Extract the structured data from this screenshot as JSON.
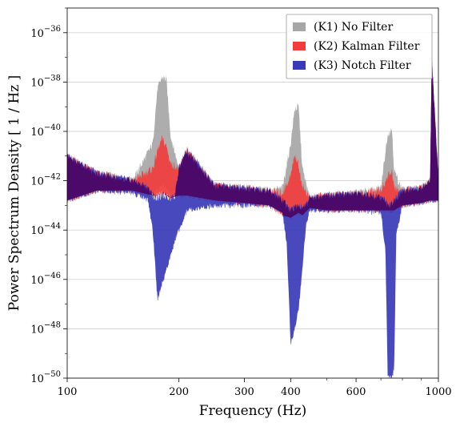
{
  "chart_data": {
    "type": "line",
    "title": "",
    "xlabel": "Frequency (Hz)",
    "ylabel": "Power Spectrum Density [ 1 / Hz ]",
    "xscale": "log",
    "yscale": "log",
    "xlim": [
      100,
      1000
    ],
    "ylim": [
      1e-50,
      1e-35
    ],
    "grid": "horizontal",
    "legend_position": "top-right",
    "x_ticks": [
      {
        "value": 100,
        "label": "100"
      },
      {
        "value": 200,
        "label": "200"
      },
      {
        "value": 300,
        "label": "300"
      },
      {
        "value": 400,
        "label": "400"
      },
      {
        "value": 600,
        "label": "600"
      },
      {
        "value": 1000,
        "label": "1000"
      }
    ],
    "y_ticks": [
      {
        "value": 1e-36,
        "base": "10",
        "exp": "−36"
      },
      {
        "value": 1e-38,
        "base": "10",
        "exp": "−38"
      },
      {
        "value": 1e-40,
        "base": "10",
        "exp": "−40"
      },
      {
        "value": 1e-42,
        "base": "10",
        "exp": "−42"
      },
      {
        "value": 1e-44,
        "base": "10",
        "exp": "−44"
      },
      {
        "value": 1e-46,
        "base": "10",
        "exp": "−46"
      },
      {
        "value": 1e-48,
        "base": "10",
        "exp": "−48"
      },
      {
        "value": 1e-50,
        "base": "10",
        "exp": "−50"
      }
    ],
    "series": [
      {
        "name": "(K1) No Filter",
        "color": "#a6a6a6",
        "x": [
          100,
          120,
          150,
          170,
          175,
          180,
          185,
          190,
          200,
          210,
          250,
          300,
          350,
          380,
          400,
          410,
          420,
          430,
          450,
          500,
          600,
          700,
          730,
          750,
          760,
          800,
          900,
          950,
          960,
          1000
        ],
        "low_exp": [
          -42.8,
          -42.4,
          -42.4,
          -42.5,
          -42.3,
          -42.2,
          -42.3,
          -42.5,
          -42.4,
          -42.6,
          -42.8,
          -42.9,
          -43.0,
          -43.2,
          -43.3,
          -43.2,
          -43.2,
          -43.3,
          -43.1,
          -43.2,
          -43.2,
          -43.1,
          -43.0,
          -43.0,
          -43.1,
          -43.0,
          -42.9,
          -42.8,
          -42.8,
          -42.8
        ],
        "high_exp": [
          -41.0,
          -41.7,
          -42.0,
          -40.5,
          -38.3,
          -37.8,
          -37.9,
          -40.2,
          -41.5,
          -40.7,
          -42.2,
          -42.3,
          -42.4,
          -42.3,
          -40.5,
          -39.1,
          -39.0,
          -41.5,
          -42.7,
          -42.6,
          -42.5,
          -42.3,
          -40.1,
          -39.9,
          -41.6,
          -42.4,
          -42.3,
          -42.0,
          -37.0,
          -42.0
        ]
      },
      {
        "name": "(K2) Kalman Filter",
        "color": "#f03c3c",
        "x": [
          100,
          120,
          150,
          170,
          175,
          180,
          185,
          190,
          200,
          210,
          250,
          300,
          350,
          380,
          400,
          410,
          420,
          430,
          450,
          500,
          600,
          700,
          730,
          750,
          760,
          800,
          900,
          950,
          960,
          1000
        ],
        "low_exp": [
          -42.8,
          -42.4,
          -42.4,
          -42.6,
          -42.6,
          -42.5,
          -42.6,
          -42.7,
          -42.6,
          -42.6,
          -42.8,
          -42.9,
          -43.0,
          -43.4,
          -43.5,
          -43.4,
          -43.3,
          -43.4,
          -43.1,
          -43.2,
          -43.2,
          -43.2,
          -43.2,
          -43.2,
          -43.2,
          -43.0,
          -42.9,
          -42.8,
          -42.8,
          -42.8
        ],
        "high_exp": [
          -41.0,
          -41.7,
          -42.0,
          -41.5,
          -40.8,
          -40.3,
          -40.6,
          -41.3,
          -41.5,
          -40.8,
          -42.2,
          -42.3,
          -42.4,
          -42.5,
          -41.8,
          -40.9,
          -41.4,
          -42.2,
          -42.7,
          -42.6,
          -42.5,
          -42.4,
          -41.8,
          -41.6,
          -42.3,
          -42.4,
          -42.3,
          -42.0,
          -37.0,
          -42.0
        ]
      },
      {
        "name": "(K3) Notch Filter",
        "color": "#3a3ab8",
        "x": [
          100,
          120,
          150,
          165,
          170,
          175,
          180,
          185,
          190,
          195,
          200,
          210,
          250,
          300,
          350,
          380,
          390,
          400,
          410,
          420,
          430,
          440,
          450,
          500,
          600,
          700,
          720,
          730,
          740,
          750,
          760,
          770,
          800,
          900,
          950,
          960,
          1000
        ],
        "low_exp": [
          -42.8,
          -42.4,
          -42.5,
          -42.8,
          -44.0,
          -46.8,
          -46.2,
          -45.6,
          -45.0,
          -44.4,
          -44.0,
          -43.2,
          -43.0,
          -43.0,
          -43.0,
          -43.3,
          -44.5,
          -48.6,
          -48.0,
          -47.2,
          -45.6,
          -43.8,
          -43.2,
          -43.2,
          -43.2,
          -43.3,
          -44.8,
          -49.8,
          -50.0,
          -50.0,
          -49.6,
          -44.2,
          -43.0,
          -42.9,
          -42.8,
          -42.8,
          -42.8
        ],
        "high_exp": [
          -41.0,
          -41.7,
          -42.0,
          -42.3,
          -42.6,
          -42.7,
          -42.6,
          -42.6,
          -42.7,
          -42.6,
          -41.5,
          -40.8,
          -42.2,
          -42.3,
          -42.4,
          -42.8,
          -43.0,
          -43.2,
          -43.1,
          -43.0,
          -43.1,
          -43.0,
          -42.7,
          -42.6,
          -42.5,
          -42.7,
          -42.8,
          -43.0,
          -43.0,
          -42.9,
          -42.8,
          -42.7,
          -42.4,
          -42.3,
          -42.0,
          -37.0,
          -42.0
        ]
      }
    ],
    "overlap_color": "#4b0a6a"
  }
}
